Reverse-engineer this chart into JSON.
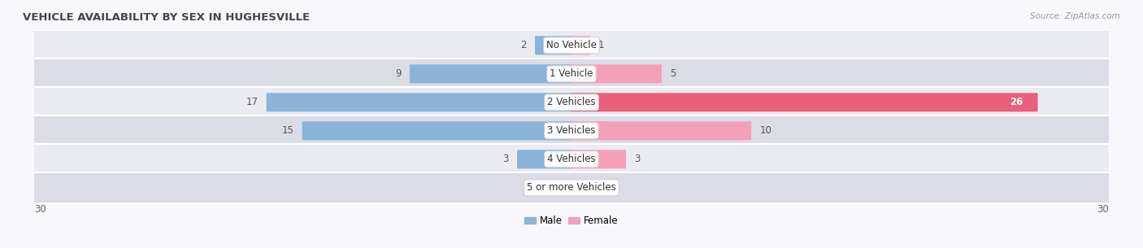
{
  "title": "VEHICLE AVAILABILITY BY SEX IN HUGHESVILLE",
  "source": "Source: ZipAtlas.com",
  "categories": [
    "No Vehicle",
    "1 Vehicle",
    "2 Vehicles",
    "3 Vehicles",
    "4 Vehicles",
    "5 or more Vehicles"
  ],
  "male_values": [
    2,
    9,
    17,
    15,
    3,
    0
  ],
  "female_values": [
    1,
    5,
    26,
    10,
    3,
    0
  ],
  "male_color": "#8ab4d8",
  "female_color": "#f4a0b8",
  "female_color_bright": "#e8607a",
  "row_bg_light": "#ebebf2",
  "row_bg_dark": "#dcdce6",
  "fig_bg": "#f8f8fc",
  "xlim": 30,
  "bar_height": 0.58,
  "label_fontsize": 8.5,
  "title_fontsize": 9.5,
  "legend_fontsize": 8.5,
  "source_fontsize": 7.5
}
